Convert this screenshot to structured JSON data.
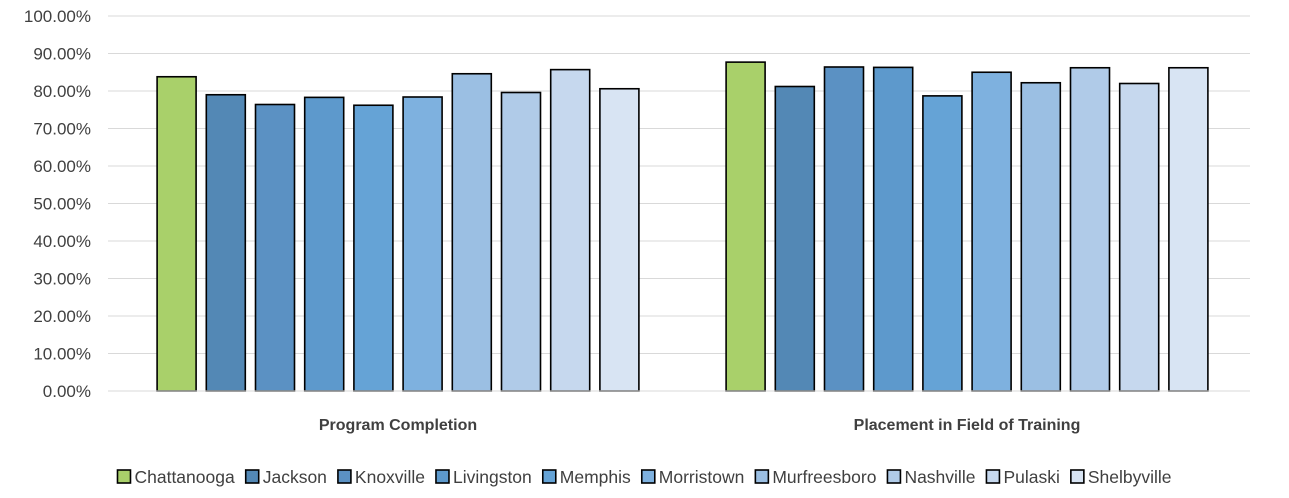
{
  "chart_data": {
    "type": "bar",
    "categories": [
      "Program Completion",
      "Placement in Field of Training"
    ],
    "series": [
      {
        "name": "Chattanooga",
        "color": "#a9d06a",
        "values": [
          0.838,
          0.877
        ]
      },
      {
        "name": "Jackson",
        "color": "#5388b5",
        "values": [
          0.79,
          0.812
        ]
      },
      {
        "name": "Knoxville",
        "color": "#5b91c3",
        "values": [
          0.764,
          0.864
        ]
      },
      {
        "name": "Livingston",
        "color": "#5d99cc",
        "values": [
          0.783,
          0.863
        ]
      },
      {
        "name": "Memphis",
        "color": "#65a3d6",
        "values": [
          0.762,
          0.787
        ]
      },
      {
        "name": "Morristown",
        "color": "#7eb1df",
        "values": [
          0.784,
          0.85
        ]
      },
      {
        "name": "Murfreesboro",
        "color": "#9bbfe3",
        "values": [
          0.846,
          0.822
        ]
      },
      {
        "name": "Nashville",
        "color": "#b0cbe8",
        "values": [
          0.796,
          0.862
        ]
      },
      {
        "name": "Pulaski",
        "color": "#c6d8ee",
        "values": [
          0.857,
          0.82
        ]
      },
      {
        "name": "Shelbyville",
        "color": "#d8e4f3",
        "values": [
          0.806,
          0.862
        ]
      }
    ],
    "ylim": [
      0,
      1
    ],
    "yticks": [
      "0.00%",
      "10.00%",
      "20.00%",
      "30.00%",
      "40.00%",
      "50.00%",
      "60.00%",
      "70.00%",
      "80.00%",
      "90.00%",
      "100.00%"
    ],
    "grid": true,
    "legend_position": "bottom",
    "title": "",
    "xlabel": "",
    "ylabel": ""
  }
}
